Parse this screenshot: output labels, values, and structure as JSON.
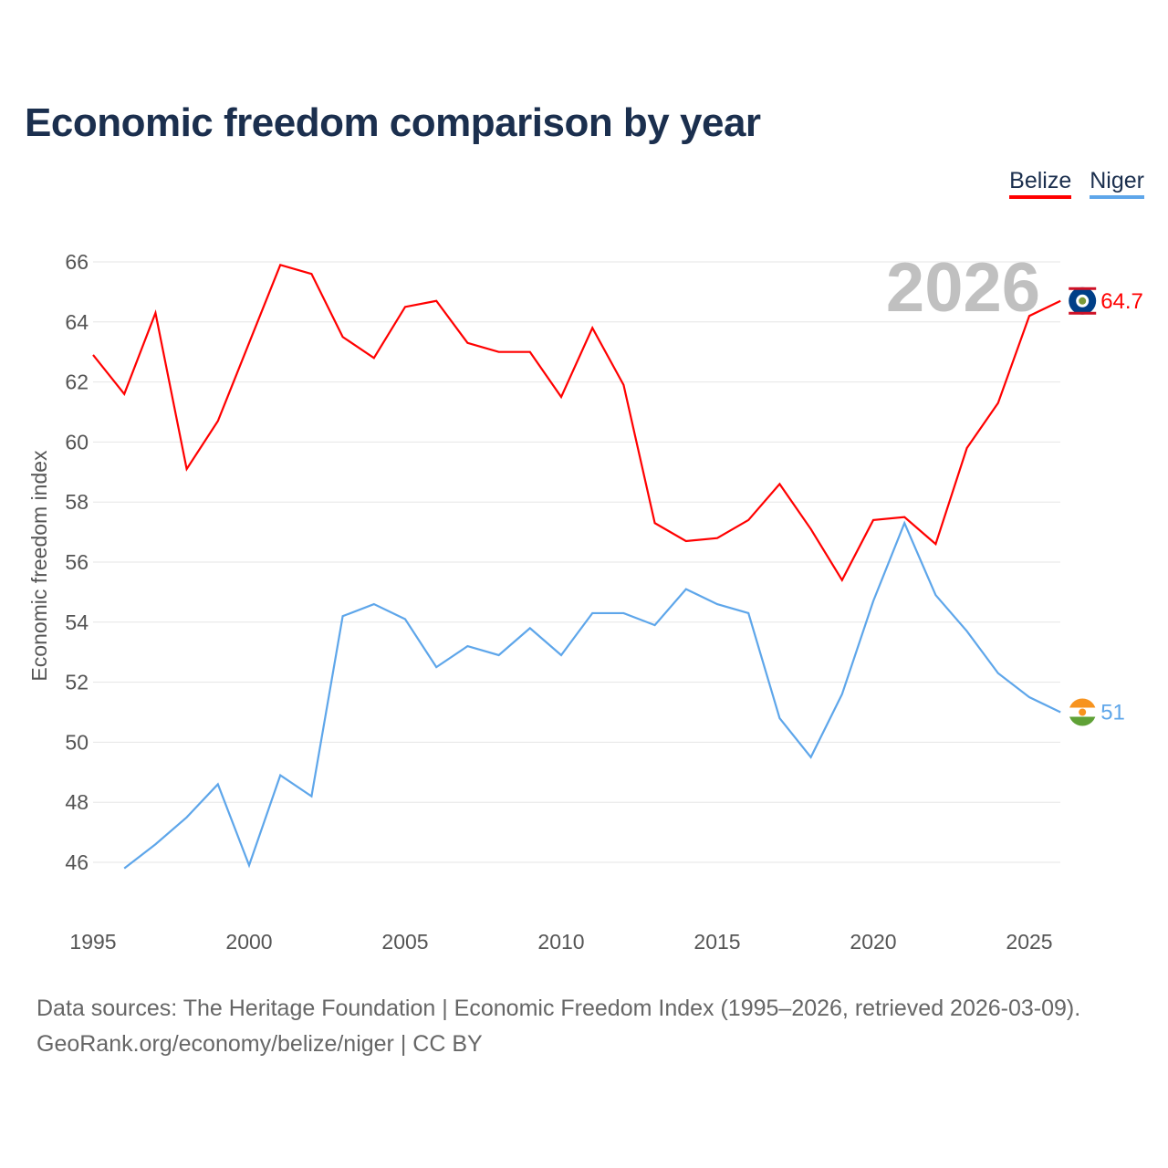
{
  "title": "Economic freedom comparison by year",
  "legend": [
    {
      "name": "Belize",
      "color": "#ff0000"
    },
    {
      "name": "Niger",
      "color": "#5ea6ea"
    }
  ],
  "year_watermark": "2026",
  "footer": {
    "line1": "Data sources: The Heritage Foundation | Economic Freedom Index (1995–2026, retrieved 2026-03-09).",
    "line2": "GeoRank.org/economy/belize/niger | CC BY"
  },
  "chart_data": {
    "type": "line",
    "title": "Economic freedom comparison by year",
    "xlabel": "",
    "ylabel": "Economic freedom index",
    "xlim": [
      1995,
      2026
    ],
    "ylim": [
      44.5,
      66.5
    ],
    "xticks": [
      1995,
      2000,
      2005,
      2010,
      2015,
      2020,
      2025
    ],
    "yticks": [
      46,
      48,
      50,
      52,
      54,
      56,
      58,
      60,
      62,
      64,
      66
    ],
    "grid": true,
    "legend_position": "top-right",
    "series": [
      {
        "name": "Belize",
        "color": "#ff0000",
        "end_label": "64.7",
        "x": [
          1995,
          1996,
          1997,
          1998,
          1999,
          2000,
          2001,
          2002,
          2003,
          2004,
          2005,
          2006,
          2007,
          2008,
          2009,
          2010,
          2011,
          2012,
          2013,
          2014,
          2015,
          2016,
          2017,
          2018,
          2019,
          2020,
          2021,
          2022,
          2023,
          2024,
          2025,
          2026
        ],
        "values": [
          62.9,
          61.6,
          64.3,
          59.1,
          60.7,
          63.3,
          65.9,
          65.6,
          63.5,
          62.8,
          64.5,
          64.7,
          63.3,
          63.0,
          63.0,
          61.5,
          63.8,
          61.9,
          57.3,
          56.7,
          56.8,
          57.4,
          58.6,
          57.1,
          55.4,
          57.4,
          57.5,
          56.6,
          59.8,
          61.3,
          64.2,
          64.7
        ]
      },
      {
        "name": "Niger",
        "color": "#5ea6ea",
        "end_label": "51",
        "x": [
          1996,
          1997,
          1998,
          1999,
          2000,
          2001,
          2002,
          2003,
          2004,
          2005,
          2006,
          2007,
          2008,
          2009,
          2010,
          2011,
          2012,
          2013,
          2014,
          2015,
          2016,
          2017,
          2018,
          2019,
          2020,
          2021,
          2022,
          2023,
          2024,
          2025,
          2026
        ],
        "values": [
          45.8,
          46.6,
          47.5,
          48.6,
          45.9,
          48.9,
          48.2,
          54.2,
          54.6,
          54.1,
          52.5,
          53.2,
          52.9,
          53.8,
          52.9,
          54.3,
          54.3,
          53.9,
          55.1,
          54.6,
          54.3,
          50.8,
          49.5,
          51.6,
          54.7,
          57.3,
          54.9,
          53.7,
          52.3,
          51.5,
          51.0
        ]
      }
    ]
  }
}
